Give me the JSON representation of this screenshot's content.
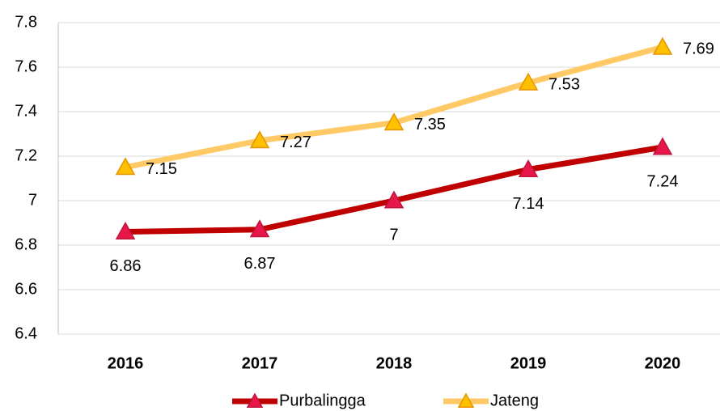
{
  "chart_data": {
    "type": "line",
    "categories": [
      "2016",
      "2017",
      "2018",
      "2019",
      "2020"
    ],
    "series": [
      {
        "name": "Purbalingga",
        "color": "#c00000",
        "marker_color": "#e8174a",
        "values": [
          6.86,
          6.87,
          7,
          7.14,
          7.24
        ]
      },
      {
        "name": "Jateng",
        "color": "#ffc966",
        "marker_color": "#ffc000",
        "values": [
          7.15,
          7.27,
          7.35,
          7.53,
          7.69
        ]
      }
    ],
    "ylim": [
      6.4,
      7.8
    ],
    "yticks": [
      6.4,
      6.6,
      6.8,
      7,
      7.2,
      7.4,
      7.6,
      7.8
    ],
    "grid": true,
    "legend": "bottom"
  }
}
